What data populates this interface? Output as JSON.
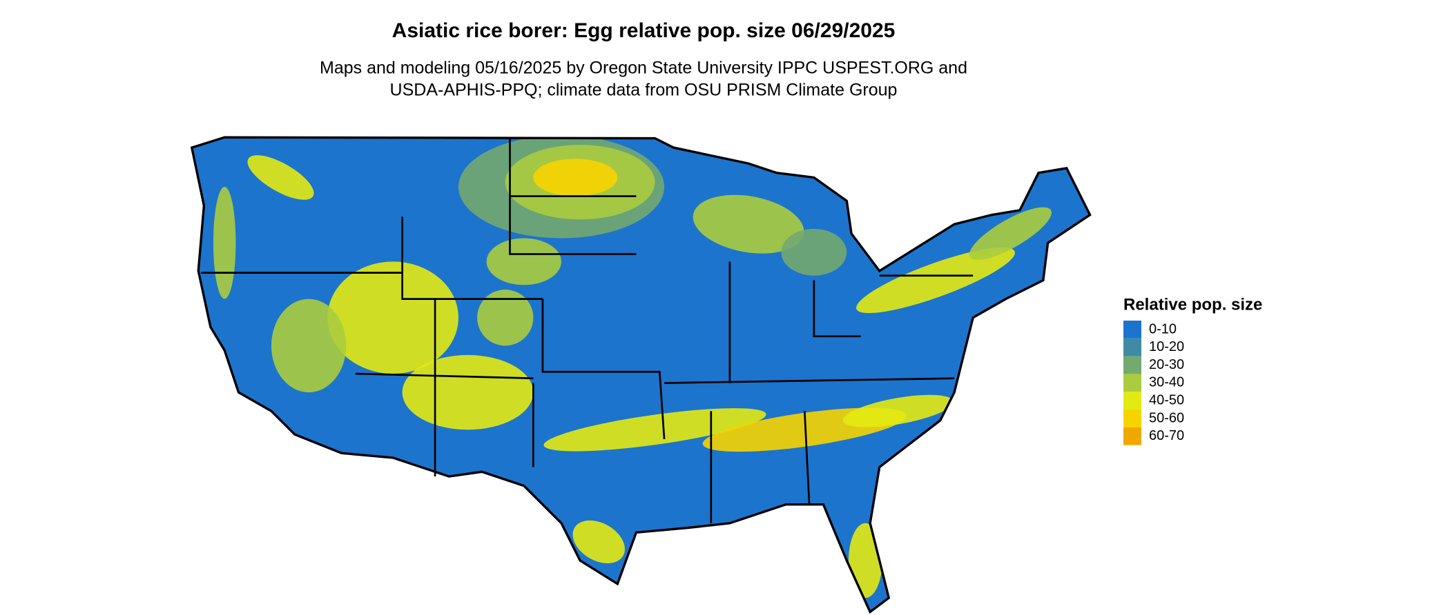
{
  "title": "Asiatic rice borer: Egg relative pop. size 06/29/2025",
  "subtitle": [
    "Maps and modeling 05/16/2025 by Oregon State University IPPC USPEST.ORG and",
    "USDA-APHIS-PPQ; climate data from OSU PRISM Climate Group"
  ],
  "legend": {
    "title": "Relative pop. size",
    "items": [
      {
        "label": "0-10",
        "color": "#1c74cd"
      },
      {
        "label": "10-20",
        "color": "#3f8ba6"
      },
      {
        "label": "20-30",
        "color": "#74a970"
      },
      {
        "label": "30-40",
        "color": "#abcc3e"
      },
      {
        "label": "40-50",
        "color": "#e3ea12"
      },
      {
        "label": "50-60",
        "color": "#f7d400"
      },
      {
        "label": "60-70",
        "color": "#f0a800"
      }
    ]
  }
}
